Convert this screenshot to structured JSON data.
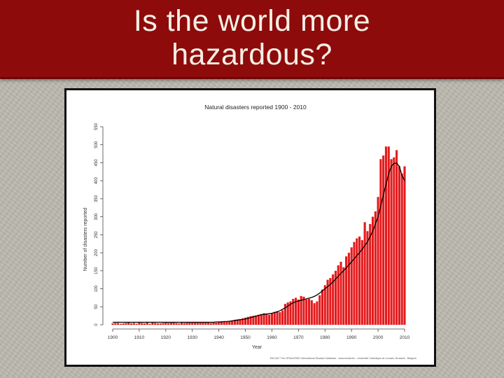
{
  "slide": {
    "title_line1": "Is the world more",
    "title_line2": "hazardous?"
  },
  "colors": {
    "title_band": "#8e0b0b",
    "title_text": "#f4f0e6",
    "bar": "#e41a1c",
    "trend": "#000000"
  },
  "chart_data": {
    "type": "bar",
    "title": "Natural disasters reported 1900 - 2010",
    "xlabel": "Year",
    "ylabel": "Number of disasters reported",
    "source_note": "EM-DAT: The OFDA/CRED International Disaster Database - www.emdat.be - Université Catholique de Louvain, Brussels - Belgium",
    "xlim": [
      1900,
      2010
    ],
    "ylim": [
      0,
      550
    ],
    "x_ticks": [
      1900,
      1910,
      1920,
      1930,
      1940,
      1950,
      1960,
      1970,
      1980,
      1990,
      2000,
      2010
    ],
    "y_ticks": [
      0,
      50,
      100,
      150,
      200,
      250,
      300,
      350,
      400,
      450,
      500,
      550
    ],
    "grid": false,
    "legend": "none",
    "x": [
      1900,
      1901,
      1902,
      1903,
      1904,
      1905,
      1906,
      1907,
      1908,
      1909,
      1910,
      1911,
      1912,
      1913,
      1914,
      1915,
      1916,
      1917,
      1918,
      1919,
      1920,
      1921,
      1922,
      1923,
      1924,
      1925,
      1926,
      1927,
      1928,
      1929,
      1930,
      1931,
      1932,
      1933,
      1934,
      1935,
      1936,
      1937,
      1938,
      1939,
      1940,
      1941,
      1942,
      1943,
      1944,
      1945,
      1946,
      1947,
      1948,
      1949,
      1950,
      1951,
      1952,
      1953,
      1954,
      1955,
      1956,
      1957,
      1958,
      1959,
      1960,
      1961,
      1962,
      1963,
      1964,
      1965,
      1966,
      1967,
      1968,
      1969,
      1970,
      1971,
      1972,
      1973,
      1974,
      1975,
      1976,
      1977,
      1978,
      1979,
      1980,
      1981,
      1982,
      1983,
      1984,
      1985,
      1986,
      1987,
      1988,
      1989,
      1990,
      1991,
      1992,
      1993,
      1994,
      1995,
      1996,
      1997,
      1998,
      1999,
      2000,
      2001,
      2002,
      2003,
      2004,
      2005,
      2006,
      2007,
      2008,
      2009,
      2010
    ],
    "series": [
      {
        "values": [
          4,
          5,
          5,
          3,
          4,
          5,
          6,
          4,
          5,
          3,
          6,
          5,
          4,
          7,
          3,
          6,
          5,
          4,
          4,
          5,
          6,
          5,
          7,
          6,
          5,
          4,
          6,
          5,
          6,
          7,
          6,
          8,
          7,
          6,
          8,
          7,
          6,
          5,
          7,
          6,
          8,
          10,
          9,
          8,
          10,
          12,
          14,
          15,
          16,
          18,
          20,
          22,
          24,
          25,
          26,
          28,
          30,
          32,
          30,
          28,
          33,
          36,
          38,
          35,
          40,
          58,
          62,
          65,
          72,
          75,
          70,
          80,
          78,
          70,
          72,
          68,
          60,
          65,
          82,
          98,
          110,
          125,
          130,
          140,
          150,
          165,
          175,
          160,
          190,
          200,
          215,
          230,
          240,
          245,
          235,
          285,
          260,
          280,
          300,
          315,
          355,
          460,
          470,
          495,
          495,
          460,
          465,
          485,
          440,
          420,
          440
        ],
        "trend": [
          7,
          7,
          7,
          7,
          7,
          7,
          7,
          7,
          7,
          7,
          7,
          7,
          7,
          7,
          7,
          7,
          7,
          7,
          7,
          7,
          7,
          7,
          7,
          7,
          7,
          7,
          7,
          7,
          7,
          7,
          7,
          7,
          7,
          7,
          7,
          7,
          7,
          7,
          7,
          8,
          8,
          8,
          9,
          9,
          10,
          11,
          12,
          13,
          14,
          15,
          16,
          18,
          20,
          22,
          24,
          26,
          28,
          29,
          30,
          31,
          32,
          34,
          36,
          39,
          43,
          47,
          52,
          57,
          61,
          64,
          66,
          68,
          70,
          72,
          74,
          76,
          79,
          83,
          88,
          94,
          100,
          106,
          112,
          119,
          127,
          135,
          143,
          150,
          158,
          166,
          175,
          183,
          192,
          200,
          210,
          220,
          230,
          245,
          260,
          280,
          300,
          330,
          360,
          390,
          420,
          440,
          448,
          449,
          440,
          415,
          400
        ]
      }
    ]
  }
}
